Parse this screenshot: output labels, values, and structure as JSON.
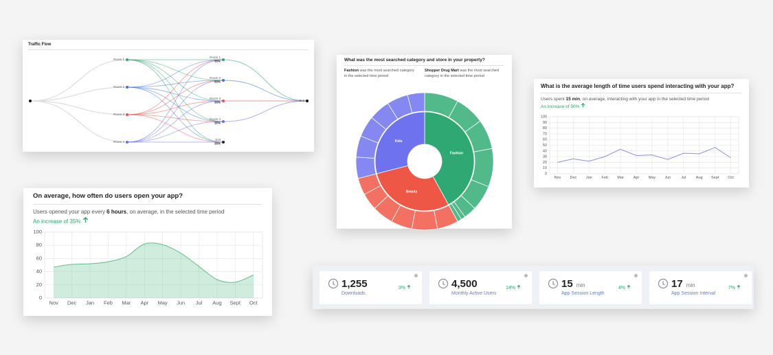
{
  "chart_data": [
    {
      "type": "flow",
      "title": "Traffic Flow",
      "sources": [
        "Room 1",
        "Room 2",
        "Room 3",
        "Room 4"
      ],
      "source_colors": [
        "#2ca66a",
        "#3b6fe0",
        "#e8504a",
        "#6a6ee8"
      ],
      "stages": [
        "Room 1",
        "Room 2",
        "Room 3",
        "Room 4",
        "Exit"
      ],
      "values": [
        35,
        50,
        30,
        35,
        35
      ],
      "value_labels": [
        "35%",
        "50%",
        "30%",
        "35%",
        "35%"
      ],
      "stage_colors": [
        "#2ca66a",
        "#3b6fe0",
        "#e8504a",
        "#6a6ee8",
        "#222222"
      ],
      "end": "Exit"
    },
    {
      "type": "sunburst",
      "title": "What was the most searched category and store in your property?",
      "notes": [
        [
          "Fashion",
          " was the most searched category in the selected time period"
        ],
        [
          "Shopper Drug Mart",
          " was the most searched category in the selected time period"
        ]
      ],
      "series": [
        {
          "name": "Fashion",
          "color": "#2fa874",
          "outer_color": "#52b98a",
          "value": 42,
          "children": [
            8,
            7,
            7,
            9,
            6,
            3,
            1,
            1
          ]
        },
        {
          "name": "Beauty",
          "color": "#ee5645",
          "outer_color": "#f27163",
          "value": 29,
          "children": [
            5,
            6,
            5,
            5,
            4,
            4
          ]
        },
        {
          "name": "Kids",
          "color": "#6f72ee",
          "outer_color": "#8588f1",
          "value": 29,
          "children": [
            5,
            5,
            5,
            5,
            5,
            4
          ]
        }
      ]
    },
    {
      "type": "line",
      "title": "What is the average length of time users spend interacting with your app?",
      "subtitle": [
        "Users spent ",
        "15 min",
        ", on average, interacting with your app in the selected time period"
      ],
      "increase": "An increase of 50%",
      "categories": [
        "Nov",
        "Dec",
        "Jan",
        "Feb",
        "Mar",
        "Apr",
        "May",
        "Jun",
        "Jul",
        "Aug",
        "Sept",
        "Oct"
      ],
      "values": [
        20,
        26,
        22,
        30,
        43,
        32,
        33,
        25,
        36,
        35,
        46,
        28
      ],
      "color": "#8a8ee8",
      "ylim": [
        0,
        100
      ],
      "yticks": [
        0,
        10,
        20,
        30,
        40,
        50,
        60,
        70,
        80,
        90,
        100
      ],
      "grid": true
    },
    {
      "type": "area",
      "title": "On average, how often do users open your app?",
      "subtitle": [
        "Users opened your app every ",
        "6 hours",
        ", on average, in the selected time period"
      ],
      "increase": "An increase of 35%",
      "categories": [
        "Nov",
        "Dec",
        "Jan",
        "Feb",
        "Mar",
        "Apr",
        "May",
        "Jun",
        "Jul",
        "Aug",
        "Sept",
        "Oct"
      ],
      "values": [
        47,
        51,
        52,
        55,
        63,
        82,
        81,
        68,
        48,
        28,
        24,
        35
      ],
      "color": "#5fbf8c",
      "ylim": [
        0,
        100
      ],
      "yticks": [
        0,
        20,
        40,
        60,
        80,
        100
      ],
      "grid": true
    }
  ],
  "kpis": [
    {
      "value": "1,255",
      "label": "Downloads",
      "change": "3%"
    },
    {
      "value": "4,500",
      "label": "Monthly Active Users",
      "change": "14%"
    },
    {
      "value": "15",
      "unit": "min",
      "label": "App Session Length",
      "change": "4%"
    },
    {
      "value": "17",
      "unit": "min",
      "label": "App Session Interval",
      "change": "7%"
    }
  ]
}
